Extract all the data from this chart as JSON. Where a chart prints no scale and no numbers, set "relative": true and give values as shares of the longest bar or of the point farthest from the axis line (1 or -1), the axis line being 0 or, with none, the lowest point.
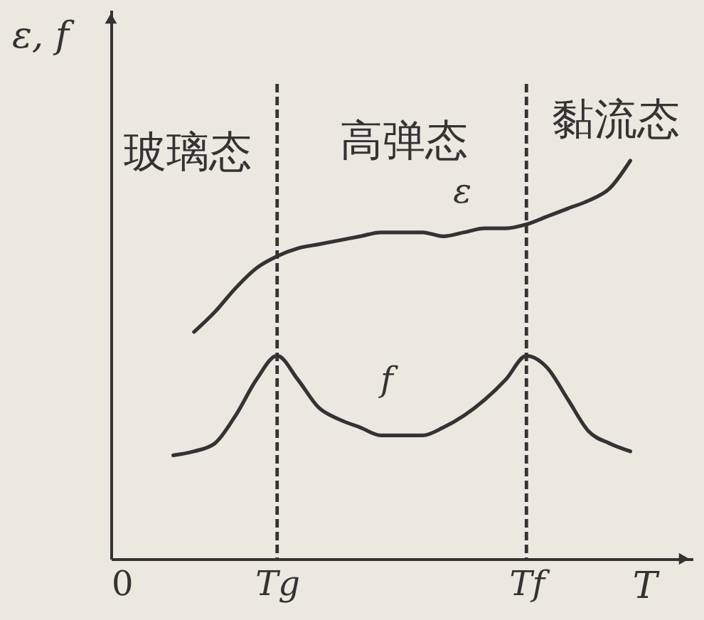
{
  "chart_data": {
    "type": "line",
    "relative": true,
    "ylabel": "ε, f",
    "xlabel": "T",
    "categories": [
      "0",
      null,
      null,
      null,
      null,
      null,
      null,
      null,
      "Tg",
      null,
      null,
      null,
      null,
      null,
      null,
      null,
      null,
      null,
      null,
      null,
      "Tf",
      null,
      null,
      null,
      null,
      null,
      null,
      null,
      null
    ],
    "tick_labels": "x",
    "grid": false,
    "legend": false,
    "marker": "none",
    "line_style": "solid",
    "series": [
      {
        "name": "ε",
        "color": "#333333",
        "values": [
          null,
          null,
          null,
          null,
          0.57,
          0.62,
          0.68,
          0.73,
          0.76,
          0.78,
          0.79,
          0.8,
          0.81,
          0.82,
          0.82,
          0.82,
          0.81,
          0.82,
          0.83,
          0.83,
          0.84,
          0.86,
          0.88,
          0.9,
          0.93,
          1.0,
          null,
          null,
          null
        ]
      },
      {
        "name": "f",
        "color": "#333333",
        "values": [
          null,
          null,
          null,
          0.26,
          0.27,
          0.29,
          0.36,
          0.45,
          0.51,
          0.45,
          0.38,
          0.35,
          0.33,
          0.31,
          0.31,
          0.31,
          0.33,
          0.36,
          0.4,
          0.45,
          0.51,
          0.48,
          0.4,
          0.32,
          0.29,
          0.27,
          null,
          null,
          null
        ]
      }
    ],
    "ref_lines": [
      {
        "axis": "x",
        "value": "Tg",
        "line_style": "dashed",
        "color": "#333333"
      },
      {
        "axis": "x",
        "value": "Tf",
        "line_style": "dashed",
        "color": "#333333"
      }
    ],
    "annotations": [
      "玻璃态",
      "高弹态",
      "黏流态"
    ]
  }
}
